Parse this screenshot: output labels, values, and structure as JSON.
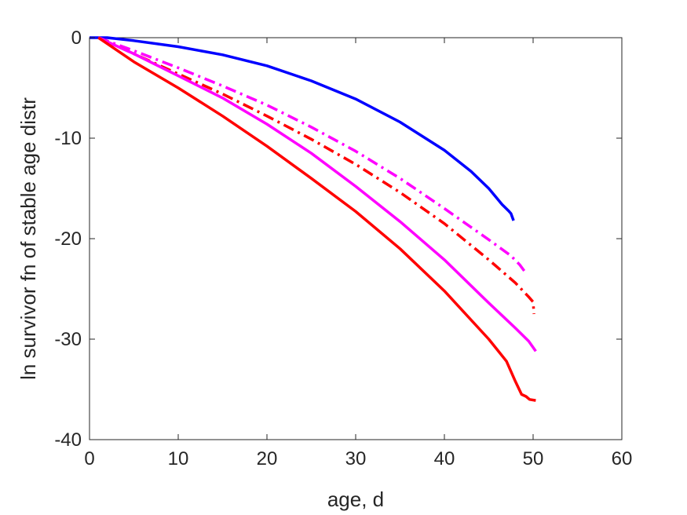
{
  "chart_data": {
    "type": "line",
    "title": "",
    "xlabel": "age, d",
    "ylabel": "ln survivor fn of stable age distr",
    "xlim": [
      0,
      60
    ],
    "ylim": [
      -40,
      0
    ],
    "xticks": [
      0,
      10,
      20,
      30,
      40,
      50,
      60
    ],
    "yticks": [
      -40,
      -30,
      -20,
      -10,
      0
    ],
    "xtick_labels": [
      "0",
      "10",
      "20",
      "30",
      "40",
      "50",
      "60"
    ],
    "ytick_labels": [
      "-40",
      "-30",
      "-20",
      "-10",
      "0"
    ],
    "grid": false,
    "legend": false,
    "series": [
      {
        "color": "#0000ff",
        "style": "solid",
        "x": [
          0,
          2,
          5,
          10,
          15,
          20,
          25,
          30,
          35,
          40,
          43,
          45,
          46.5,
          47.2,
          47.5,
          47.8
        ],
        "y": [
          0,
          0,
          -0.3,
          -0.9,
          -1.7,
          -2.8,
          -4.3,
          -6.1,
          -8.4,
          -11.2,
          -13.3,
          -15.0,
          -16.6,
          -17.2,
          -17.5,
          -18.2
        ]
      },
      {
        "color": "#ff00ff",
        "style": "dashdot",
        "x": [
          1,
          5,
          10,
          15,
          20,
          25,
          30,
          35,
          40,
          45,
          47.5,
          48.5,
          49
        ],
        "y": [
          0,
          -1.3,
          -3.0,
          -4.8,
          -6.7,
          -8.9,
          -11.3,
          -14.0,
          -17.0,
          -20.1,
          -21.7,
          -22.6,
          -23.2
        ]
      },
      {
        "color": "#ff0000",
        "style": "dashdot",
        "x": [
          1,
          5,
          10,
          15,
          20,
          25,
          30,
          35,
          40,
          45,
          48,
          49.5,
          50,
          50.1
        ],
        "y": [
          0,
          -1.6,
          -3.6,
          -5.6,
          -7.8,
          -10.1,
          -12.6,
          -15.4,
          -18.5,
          -22.1,
          -24.4,
          -25.8,
          -26.3,
          -27.5
        ]
      },
      {
        "color": "#ff00ff",
        "style": "solid",
        "x": [
          1,
          5,
          10,
          15,
          20,
          25,
          30,
          35,
          40,
          45,
          48,
          49.5,
          50.3
        ],
        "y": [
          0,
          -1.6,
          -3.8,
          -6.0,
          -8.6,
          -11.5,
          -14.8,
          -18.3,
          -22.1,
          -26.4,
          -28.9,
          -30.2,
          -31.2
        ]
      },
      {
        "color": "#ff0000",
        "style": "solid",
        "x": [
          1,
          5,
          10,
          15,
          20,
          25,
          30,
          35,
          40,
          45,
          47,
          48,
          48.7,
          49.2,
          49.6,
          50.3
        ],
        "y": [
          0,
          -2.4,
          -5.0,
          -7.8,
          -10.8,
          -14.0,
          -17.3,
          -21.0,
          -25.2,
          -30.0,
          -32.2,
          -34.2,
          -35.5,
          -35.7,
          -36.0,
          -36.1
        ]
      }
    ]
  }
}
